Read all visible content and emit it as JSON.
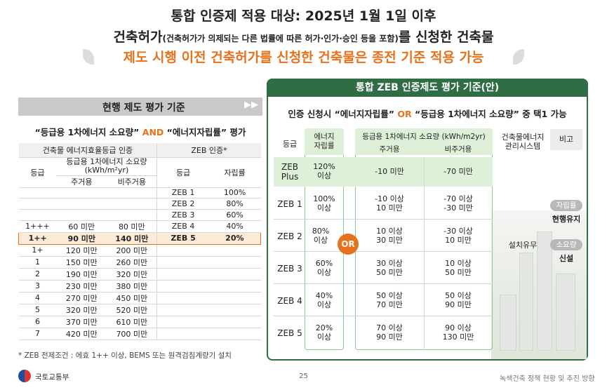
{
  "header": {
    "line1": "통합 인증제 적용 대상: 2025년 1월 1일 이후",
    "line2_main": "건축허가",
    "line2_small": "(건축허가가 의제되는 다른 법률에 따른 허가·인가·승인 등을 포함)",
    "line2_end": "를 신청한 건축물",
    "line3": "제도 시행 이전 건축허가를 신청한 건축물은 종전 기준 적용 가능"
  },
  "left": {
    "banner": "현행 제도 평가 기준",
    "banner_arrows": "▶▶",
    "subtitle_a": "“등급용 1차에너지 소요량”",
    "subtitle_and": "AND",
    "subtitle_b": "“에너지자립률” 평가",
    "table_head": {
      "group1": "건축물 에너지효율등급 인증",
      "group2": "ZEB 인증*",
      "grade": "등급",
      "energy": "등급용 1차에너지 소요량",
      "energy_unit": "(kWh/m²yr)",
      "res": "주거용",
      "nonres": "비주거용",
      "zeb_grade": "등급",
      "zeb_rate": "자립률"
    },
    "rows": [
      {
        "grade": "",
        "res": "",
        "nonres": "",
        "zeb": "ZEB 1",
        "rate": "100%"
      },
      {
        "grade": "",
        "res": "",
        "nonres": "",
        "zeb": "ZEB 2",
        "rate": "80%"
      },
      {
        "grade": "",
        "res": "",
        "nonres": "",
        "zeb": "ZEB 3",
        "rate": "60%"
      },
      {
        "grade": "1+++",
        "res": "60 미만",
        "nonres": "80 미만",
        "zeb": "ZEB 4",
        "rate": "40%"
      },
      {
        "grade": "1++",
        "res": "90 미만",
        "nonres": "140 미만",
        "zeb": "ZEB 5",
        "rate": "20%"
      },
      {
        "grade": "1+",
        "res": "120 미만",
        "nonres": "200 미만",
        "zeb": "",
        "rate": ""
      },
      {
        "grade": "1",
        "res": "150 미만",
        "nonres": "260 미만",
        "zeb": "",
        "rate": ""
      },
      {
        "grade": "2",
        "res": "190 미만",
        "nonres": "320 미만",
        "zeb": "",
        "rate": ""
      },
      {
        "grade": "3",
        "res": "230 미만",
        "nonres": "380 미만",
        "zeb": "",
        "rate": ""
      },
      {
        "grade": "4",
        "res": "270 미만",
        "nonres": "450 미만",
        "zeb": "",
        "rate": ""
      },
      {
        "grade": "5",
        "res": "320 미만",
        "nonres": "520 미만",
        "zeb": "",
        "rate": ""
      },
      {
        "grade": "6",
        "res": "370 미만",
        "nonres": "610 미만",
        "zeb": "",
        "rate": ""
      },
      {
        "grade": "7",
        "res": "420 미만",
        "nonres": "700 미만",
        "zeb": "",
        "rate": ""
      }
    ],
    "footnote": "* ZEB 전제조건 : 에효 1++ 이상, BEMS 또는 원격검침계량기 설치"
  },
  "right": {
    "title": "통합 ZEB 인증제도 평가 기준(안)",
    "subtitle_a": "인증 신청시 “에너지자립률”",
    "subtitle_or": "OR",
    "subtitle_b": "“등급용 1차에너지 소요량” 중 택1 가능",
    "head": {
      "grade": "등급",
      "self_rate": "에너지\n자립률",
      "energy": "등급용 1차에너지 소요량 (kWh/m2yr)",
      "res": "주거용",
      "nonres": "비주거용",
      "bems": "건축물에너지\n관리시스템",
      "note": "비고"
    },
    "rows": [
      {
        "grade": "ZEB\nPlus",
        "rate": "120%\n이상",
        "res": "-10 미만",
        "nonres": "-70 미만"
      },
      {
        "grade": "ZEB 1",
        "rate": "100%\n이상",
        "res": "-10 이상\n10 미만",
        "nonres": "-70 이상\n-30 미만"
      },
      {
        "grade": "ZEB 2",
        "rate": "80%\n이상",
        "res": "10 이상\n30 미만",
        "nonres": "-30 이상\n10 미만"
      },
      {
        "grade": "ZEB 3",
        "rate": "60%\n이상",
        "res": "30 이상\n50 미만",
        "nonres": "10 이상\n50 미만"
      },
      {
        "grade": "ZEB 4",
        "rate": "40%\n이상",
        "res": "50 이상\n70 미만",
        "nonres": "50 이상\n90 미만"
      },
      {
        "grade": "ZEB 5",
        "rate": "20%\n이상",
        "res": "70 이상\n90 미만",
        "nonres": "90 이상\n130 미만"
      }
    ],
    "or_badge": "OR",
    "bems_value": "설치유무",
    "note_pill1": "자립률",
    "note_val1": "현행유지",
    "note_pill2": "소요량",
    "note_val2": "신설"
  },
  "footer": {
    "org": "국토교통부",
    "page": "25",
    "right": "녹색건축 정책 현황 및 추진 방향"
  },
  "colors": {
    "accent": "#e8711c",
    "green": "#2f6e44",
    "light_green": "#dff0d8"
  }
}
